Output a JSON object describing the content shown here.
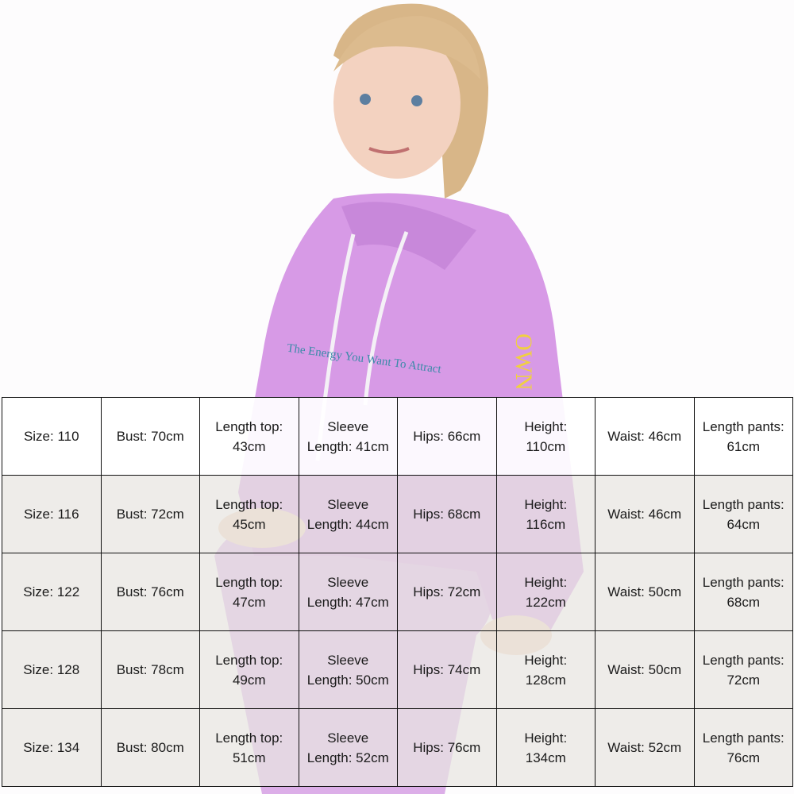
{
  "rows": [
    [
      "Size: 110",
      "Bust: 70cm",
      "Length top: 43cm",
      "Sleeve Length: 41cm",
      "Hips: 66cm",
      "Height: 110cm",
      "Waist: 46cm",
      "Length pants: 61cm"
    ],
    [
      "Size: 116",
      "Bust: 72cm",
      "Length top: 45cm",
      "Sleeve Length: 44cm",
      "Hips: 68cm",
      "Height: 116cm",
      "Waist: 46cm",
      "Length pants: 64cm"
    ],
    [
      "Size: 122",
      "Bust: 76cm",
      "Length top: 47cm",
      "Sleeve Length: 47cm",
      "Hips: 72cm",
      "Height: 122cm",
      "Waist: 50cm",
      "Length pants: 68cm"
    ],
    [
      "Size: 128",
      "Bust: 78cm",
      "Length top: 49cm",
      "Sleeve Length: 50cm",
      "Hips: 74cm",
      "Height: 128cm",
      "Waist: 50cm",
      "Length pants: 72cm"
    ],
    [
      "Size: 134",
      "Bust: 80cm",
      "Length top: 51cm",
      "Sleeve Length: 52cm",
      "Hips: 76cm",
      "Height: 134cm",
      "Waist: 52cm",
      "Length pants: 76cm"
    ]
  ],
  "print_text": "The Energy You Want To Attract",
  "colors": {
    "hoodie": "#d79ae6",
    "background": "#fdfcfd"
  }
}
